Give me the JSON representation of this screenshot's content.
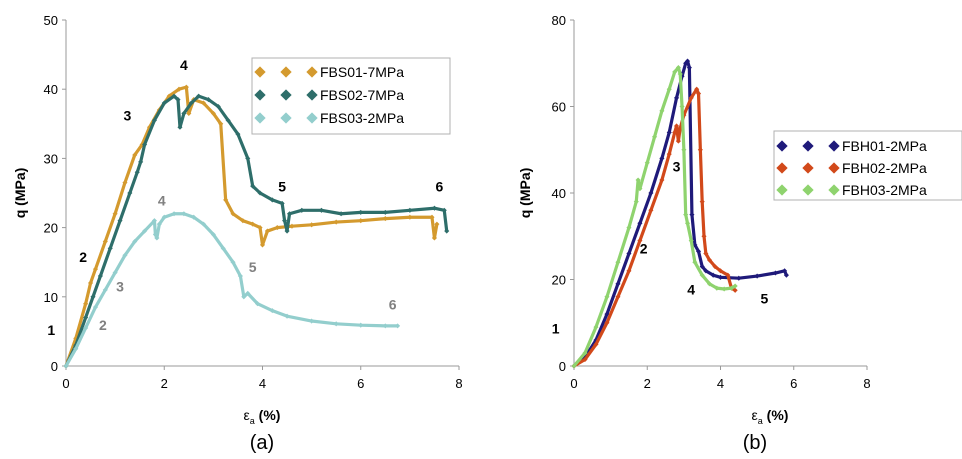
{
  "chart_data": [
    {
      "id": "a",
      "type": "line",
      "caption": "(a)",
      "xlabel": "ε",
      "xlabel_sub": "a",
      "xlabel_unit": " (%)",
      "ylabel": "q (MPa)",
      "xlim": [
        0,
        8
      ],
      "ylim": [
        0,
        50
      ],
      "xticks": [
        0,
        2,
        4,
        6,
        8
      ],
      "yticks": [
        0,
        10,
        20,
        30,
        40,
        50
      ],
      "grid": false,
      "legend_position": "top-right",
      "series": [
        {
          "name": "FBS01-7MPa",
          "color": "#D49A2E",
          "points": [
            [
              0,
              0
            ],
            [
              0.2,
              4
            ],
            [
              0.4,
              9
            ],
            [
              0.5,
              12
            ],
            [
              0.6,
              14
            ],
            [
              0.8,
              18
            ],
            [
              1.0,
              22
            ],
            [
              1.2,
              26.5
            ],
            [
              1.4,
              30.5
            ],
            [
              1.55,
              32
            ],
            [
              1.7,
              34.5
            ],
            [
              1.9,
              37
            ],
            [
              2.1,
              39
            ],
            [
              2.3,
              40
            ],
            [
              2.45,
              40.3
            ],
            [
              2.5,
              36.5
            ],
            [
              2.6,
              38.5
            ],
            [
              2.8,
              38
            ],
            [
              3.0,
              36.5
            ],
            [
              3.15,
              35
            ],
            [
              3.25,
              24
            ],
            [
              3.4,
              22
            ],
            [
              3.6,
              21
            ],
            [
              3.8,
              20.5
            ],
            [
              3.95,
              20
            ],
            [
              4.0,
              17.5
            ],
            [
              4.1,
              19.5
            ],
            [
              4.3,
              20
            ],
            [
              4.6,
              20.2
            ],
            [
              5.0,
              20.4
            ],
            [
              5.5,
              20.8
            ],
            [
              6.0,
              21
            ],
            [
              6.5,
              21.3
            ],
            [
              7.0,
              21.5
            ],
            [
              7.45,
              21.5
            ],
            [
              7.5,
              18.5
            ],
            [
              7.55,
              20.5
            ]
          ]
        },
        {
          "name": "FBS02-7MPa",
          "color": "#2E6E6A",
          "points": [
            [
              0,
              0
            ],
            [
              0.2,
              3
            ],
            [
              0.4,
              7
            ],
            [
              0.55,
              10
            ],
            [
              0.7,
              13
            ],
            [
              0.9,
              17
            ],
            [
              1.1,
              21
            ],
            [
              1.3,
              25
            ],
            [
              1.45,
              28
            ],
            [
              1.52,
              29.5
            ],
            [
              1.6,
              32
            ],
            [
              1.8,
              35.5
            ],
            [
              2.0,
              38
            ],
            [
              2.2,
              39
            ],
            [
              2.28,
              38.5
            ],
            [
              2.32,
              34.5
            ],
            [
              2.4,
              36.5
            ],
            [
              2.55,
              38
            ],
            [
              2.7,
              39
            ],
            [
              2.9,
              38.5
            ],
            [
              3.1,
              37.5
            ],
            [
              3.3,
              35.5
            ],
            [
              3.5,
              33.5
            ],
            [
              3.7,
              30
            ],
            [
              3.8,
              26
            ],
            [
              3.95,
              25
            ],
            [
              4.2,
              24
            ],
            [
              4.4,
              23.5
            ],
            [
              4.45,
              21
            ],
            [
              4.5,
              19.5
            ],
            [
              4.55,
              22
            ],
            [
              4.8,
              22.5
            ],
            [
              5.2,
              22.5
            ],
            [
              5.6,
              22
            ],
            [
              6.0,
              22.2
            ],
            [
              6.5,
              22.2
            ],
            [
              7.0,
              22.5
            ],
            [
              7.5,
              22.8
            ],
            [
              7.7,
              22.5
            ],
            [
              7.75,
              19.5
            ]
          ]
        },
        {
          "name": "FBS03-2MPa",
          "color": "#93CECD",
          "points": [
            [
              0,
              0
            ],
            [
              0.2,
              2.5
            ],
            [
              0.4,
              5.5
            ],
            [
              0.6,
              8.5
            ],
            [
              0.8,
              11
            ],
            [
              1.0,
              13.5
            ],
            [
              1.2,
              16
            ],
            [
              1.4,
              18
            ],
            [
              1.6,
              19.5
            ],
            [
              1.8,
              21
            ],
            [
              1.82,
              19
            ],
            [
              1.85,
              18.5
            ],
            [
              1.9,
              20.5
            ],
            [
              2.0,
              21.5
            ],
            [
              2.2,
              22
            ],
            [
              2.4,
              22
            ],
            [
              2.6,
              21.5
            ],
            [
              2.8,
              20.5
            ],
            [
              3.0,
              19
            ],
            [
              3.2,
              17
            ],
            [
              3.4,
              15
            ],
            [
              3.55,
              13
            ],
            [
              3.62,
              10
            ],
            [
              3.7,
              10.5
            ],
            [
              3.9,
              9
            ],
            [
              4.2,
              8
            ],
            [
              4.5,
              7.2
            ],
            [
              5.0,
              6.5
            ],
            [
              5.5,
              6.1
            ],
            [
              6.0,
              5.9
            ],
            [
              6.5,
              5.8
            ],
            [
              6.75,
              5.8
            ]
          ]
        }
      ],
      "annotations": [
        {
          "text": "1",
          "x": -0.3,
          "y": 4.5,
          "color": "#000000"
        },
        {
          "text": "2",
          "x": 0.35,
          "y": 15,
          "color": "#000000"
        },
        {
          "text": "3",
          "x": 1.25,
          "y": 35.5,
          "color": "#000000"
        },
        {
          "text": "4",
          "x": 2.4,
          "y": 42.8,
          "color": "#000000"
        },
        {
          "text": "5",
          "x": 4.4,
          "y": 25.2,
          "color": "#000000"
        },
        {
          "text": "6",
          "x": 7.6,
          "y": 25.2,
          "color": "#000000"
        },
        {
          "text": "2",
          "x": 0.75,
          "y": 5.2,
          "color": "#808080"
        },
        {
          "text": "3",
          "x": 1.1,
          "y": 10.8,
          "color": "#808080"
        },
        {
          "text": "4",
          "x": 1.95,
          "y": 23.2,
          "color": "#808080"
        },
        {
          "text": "5",
          "x": 3.8,
          "y": 13.6,
          "color": "#808080"
        },
        {
          "text": "6",
          "x": 6.65,
          "y": 8.2,
          "color": "#808080"
        }
      ]
    },
    {
      "id": "b",
      "type": "line",
      "caption": "(b)",
      "xlabel": "ε",
      "xlabel_sub": "a",
      "xlabel_unit": " (%)",
      "ylabel": "q (MPa)",
      "xlim": [
        0,
        8
      ],
      "ylim": [
        0,
        80
      ],
      "xticks": [
        0,
        2,
        4,
        6,
        8
      ],
      "yticks": [
        0,
        20,
        40,
        60,
        80
      ],
      "grid": false,
      "legend_position": "right",
      "series": [
        {
          "name": "FBH01-2MPa",
          "color": "#1F1A7A",
          "points": [
            [
              0,
              0
            ],
            [
              0.3,
              2
            ],
            [
              0.6,
              6
            ],
            [
              0.9,
              12
            ],
            [
              1.2,
              19
            ],
            [
              1.5,
              26
            ],
            [
              1.8,
              33
            ],
            [
              2.1,
              40
            ],
            [
              2.4,
              48
            ],
            [
              2.6,
              54
            ],
            [
              2.8,
              62
            ],
            [
              2.95,
              67
            ],
            [
              3.05,
              70
            ],
            [
              3.1,
              70.5
            ],
            [
              3.15,
              69
            ],
            [
              3.22,
              35
            ],
            [
              3.3,
              28
            ],
            [
              3.4,
              26.5
            ],
            [
              3.5,
              23
            ],
            [
              3.6,
              22
            ],
            [
              3.8,
              21
            ],
            [
              4.0,
              20.5
            ],
            [
              4.5,
              20.3
            ],
            [
              5.0,
              20.8
            ],
            [
              5.5,
              21.5
            ],
            [
              5.75,
              22
            ],
            [
              5.8,
              21
            ]
          ]
        },
        {
          "name": "FBH02-2MPa",
          "color": "#D2491A",
          "points": [
            [
              0,
              0
            ],
            [
              0.3,
              1.5
            ],
            [
              0.6,
              5
            ],
            [
              0.9,
              10
            ],
            [
              1.2,
              16
            ],
            [
              1.5,
              22
            ],
            [
              1.8,
              29
            ],
            [
              2.1,
              36
            ],
            [
              2.4,
              43
            ],
            [
              2.6,
              49
            ],
            [
              2.75,
              54
            ],
            [
              2.8,
              55.5
            ],
            [
              2.85,
              52
            ],
            [
              2.9,
              55
            ],
            [
              3.0,
              58
            ],
            [
              3.2,
              62
            ],
            [
              3.35,
              64
            ],
            [
              3.4,
              63
            ],
            [
              3.45,
              50
            ],
            [
              3.5,
              38
            ],
            [
              3.55,
              30
            ],
            [
              3.6,
              26
            ],
            [
              3.7,
              24.5
            ],
            [
              3.85,
              23
            ],
            [
              4.0,
              22
            ],
            [
              4.2,
              21
            ],
            [
              4.3,
              18
            ],
            [
              4.4,
              17.5
            ]
          ]
        },
        {
          "name": "FBH03-2MPa",
          "color": "#8FD36E",
          "points": [
            [
              0,
              0
            ],
            [
              0.3,
              3
            ],
            [
              0.6,
              9
            ],
            [
              0.9,
              16
            ],
            [
              1.2,
              24
            ],
            [
              1.5,
              32
            ],
            [
              1.7,
              38
            ],
            [
              1.75,
              43
            ],
            [
              1.8,
              41
            ],
            [
              2.0,
              47
            ],
            [
              2.2,
              53
            ],
            [
              2.4,
              59
            ],
            [
              2.6,
              64
            ],
            [
              2.75,
              68
            ],
            [
              2.85,
              69
            ],
            [
              2.9,
              67.5
            ],
            [
              2.95,
              60
            ],
            [
              3.0,
              50
            ],
            [
              3.05,
              35
            ],
            [
              3.1,
              33
            ],
            [
              3.2,
              29
            ],
            [
              3.3,
              24
            ],
            [
              3.5,
              21
            ],
            [
              3.7,
              19
            ],
            [
              3.9,
              18
            ],
            [
              4.1,
              17.8
            ],
            [
              4.3,
              18
            ],
            [
              4.4,
              18.5
            ]
          ]
        }
      ],
      "annotations": [
        {
          "text": "1",
          "x": -0.5,
          "y": 7.5,
          "color": "#000000"
        },
        {
          "text": "2",
          "x": 1.9,
          "y": 26,
          "color": "#000000"
        },
        {
          "text": "3",
          "x": 2.8,
          "y": 45,
          "color": "#000000"
        },
        {
          "text": "4",
          "x": 3.2,
          "y": 16.5,
          "color": "#000000"
        },
        {
          "text": "5",
          "x": 5.2,
          "y": 14.5,
          "color": "#000000"
        }
      ]
    }
  ]
}
